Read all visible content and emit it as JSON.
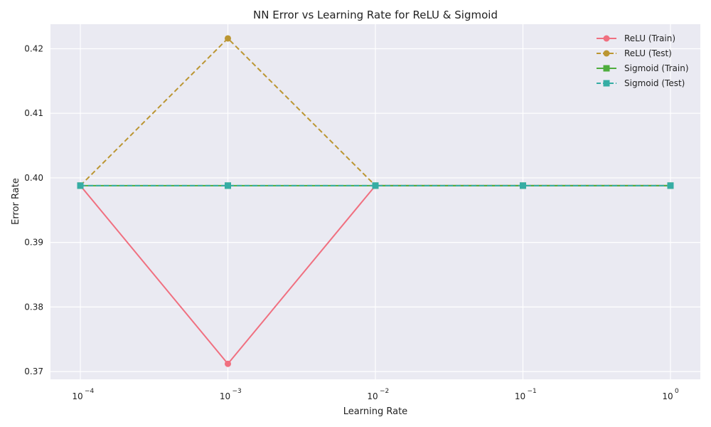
{
  "chart_data": {
    "type": "line",
    "title": "NN Error vs Learning Rate for ReLU & Sigmoid",
    "xlabel": "Learning Rate",
    "ylabel": "Error Rate",
    "x_scale": "log",
    "x": [
      0.0001,
      0.001,
      0.01,
      0.1,
      1
    ],
    "x_tick_labels": [
      {
        "base": "10",
        "exp": "−4"
      },
      {
        "base": "10",
        "exp": "−3"
      },
      {
        "base": "10",
        "exp": "−2"
      },
      {
        "base": "10",
        "exp": "−1"
      },
      {
        "base": "10",
        "exp": "0"
      }
    ],
    "ylim": [
      0.3688,
      0.4238
    ],
    "y_ticks": [
      0.37,
      0.38,
      0.39,
      0.4,
      0.41,
      0.42
    ],
    "y_tick_labels": [
      "0.37",
      "0.38",
      "0.39",
      "0.40",
      "0.41",
      "0.42"
    ],
    "grid": true,
    "legend_position": "top-right",
    "series": [
      {
        "name": "ReLU (Train)",
        "values": [
          0.3988,
          0.3712,
          0.3988,
          0.3988,
          0.3988
        ],
        "color": "#f07080",
        "dash": "solid",
        "marker": "circle"
      },
      {
        "name": "ReLU (Test)",
        "values": [
          0.3988,
          0.4216,
          0.3988,
          0.3988,
          0.3988
        ],
        "color": "#bb9633",
        "dash": "dashed",
        "marker": "circle"
      },
      {
        "name": "Sigmoid (Train)",
        "values": [
          0.3988,
          0.3988,
          0.3988,
          0.3988,
          0.3988
        ],
        "color": "#4fad3e",
        "dash": "solid",
        "marker": "square"
      },
      {
        "name": "Sigmoid (Test)",
        "values": [
          0.3988,
          0.3988,
          0.3988,
          0.3988,
          0.3988
        ],
        "color": "#36ada4",
        "dash": "dashed",
        "marker": "square"
      }
    ],
    "colors": {
      "plot_background": "#eaeaf2",
      "grid": "#ffffff"
    }
  }
}
